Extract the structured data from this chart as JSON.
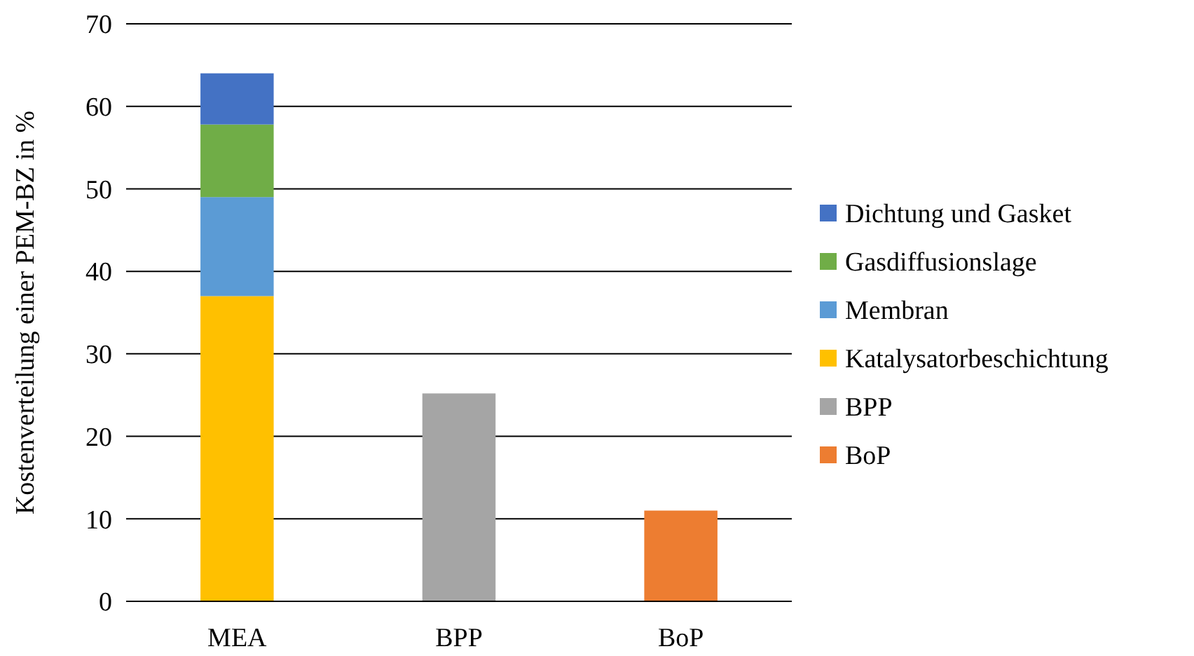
{
  "chart_data": {
    "type": "bar",
    "stacked": true,
    "ylabel": "Kostenverteilung einer PEM-BZ in %",
    "categories": [
      "MEA",
      "BPP",
      "BoP"
    ],
    "series": [
      {
        "name": "BoP",
        "color": "#ed7d31",
        "values": [
          null,
          null,
          11
        ]
      },
      {
        "name": "BPP",
        "color": "#a5a5a5",
        "values": [
          null,
          25.2,
          null
        ]
      },
      {
        "name": "Katalysatorbeschichtung",
        "color": "#ffc000",
        "values": [
          37,
          null,
          null
        ]
      },
      {
        "name": "Membran",
        "color": "#5b9bd5",
        "values": [
          12,
          null,
          null
        ]
      },
      {
        "name": "Gasdiffusionslage",
        "color": "#70ad47",
        "values": [
          8.8,
          null,
          null
        ]
      },
      {
        "name": "Dichtung und Gasket",
        "color": "#4472c4",
        "values": [
          6.2,
          null,
          null
        ]
      }
    ],
    "ylim": [
      0,
      70
    ],
    "yticks": [
      0,
      10,
      20,
      30,
      40,
      50,
      60,
      70
    ],
    "grid": "y",
    "legend": "right"
  }
}
